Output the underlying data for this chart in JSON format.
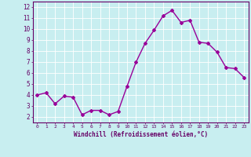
{
  "x": [
    0,
    1,
    2,
    3,
    4,
    5,
    6,
    7,
    8,
    9,
    10,
    11,
    12,
    13,
    14,
    15,
    16,
    17,
    18,
    19,
    20,
    21,
    22,
    23
  ],
  "y": [
    4.0,
    4.2,
    3.2,
    3.9,
    3.8,
    2.2,
    2.6,
    2.6,
    2.2,
    2.5,
    4.8,
    7.0,
    8.7,
    9.9,
    11.2,
    11.7,
    10.6,
    10.8,
    8.8,
    8.7,
    7.9,
    6.5,
    6.4,
    5.6
  ],
  "line_color": "#990099",
  "marker": "D",
  "marker_size": 2,
  "bg_color": "#c8eef0",
  "grid_color": "#ffffff",
  "xlabel": "Windchill (Refroidissement éolien,°C)",
  "xlabel_color": "#660066",
  "tick_color": "#660066",
  "xlim": [
    -0.5,
    23.5
  ],
  "ylim": [
    1.5,
    12.5
  ],
  "yticks": [
    2,
    3,
    4,
    5,
    6,
    7,
    8,
    9,
    10,
    11,
    12
  ],
  "xticks": [
    0,
    1,
    2,
    3,
    4,
    5,
    6,
    7,
    8,
    9,
    10,
    11,
    12,
    13,
    14,
    15,
    16,
    17,
    18,
    19,
    20,
    21,
    22,
    23
  ],
  "linewidth": 1.0,
  "spine_color": "#660066"
}
